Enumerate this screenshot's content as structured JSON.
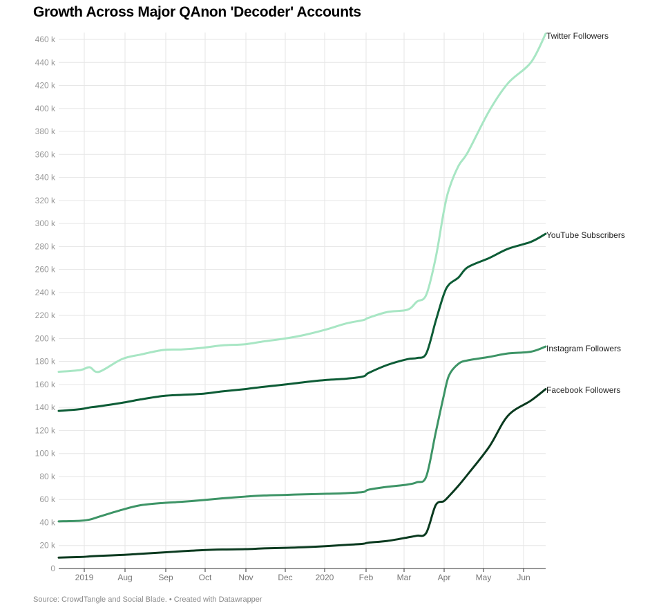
{
  "title": "Growth Across Major QAnon 'Decoder' Accounts",
  "footer": "Source: CrowdTangle and Social Blade. • Created with Datawrapper",
  "chart_data": {
    "type": "line",
    "title": "Growth Across Major QAnon 'Decoder' Accounts",
    "xlabel": "",
    "ylabel": "",
    "ylim": [
      0,
      460000
    ],
    "grid": true,
    "legend": "direct labels at line ends (right)",
    "x_ticks": [
      "2019",
      "Aug",
      "Sep",
      "Oct",
      "Nov",
      "Dec",
      "2020",
      "Feb",
      "Mar",
      "Apr",
      "May",
      "Jun"
    ],
    "y_ticks": [
      "0",
      "20 k",
      "40 k",
      "60 k",
      "80 k",
      "100 k",
      "120 k",
      "140 k",
      "160 k",
      "180 k",
      "200 k",
      "220 k",
      "240 k",
      "260 k",
      "280 k",
      "300 k",
      "320 k",
      "340 k",
      "360 k",
      "380 k",
      "400 k",
      "420 k",
      "440 k",
      "460 k"
    ],
    "x": [
      "2019-06-15",
      "2019-07-01",
      "2019-07-08",
      "2019-07-15",
      "2019-08-01",
      "2019-08-15",
      "2019-09-01",
      "2019-09-15",
      "2019-10-01",
      "2019-10-15",
      "2019-11-01",
      "2019-11-15",
      "2019-12-01",
      "2019-12-15",
      "2020-01-01",
      "2020-01-15",
      "2020-01-28",
      "2020-02-01",
      "2020-02-15",
      "2020-03-01",
      "2020-03-08",
      "2020-03-15",
      "2020-03-22",
      "2020-03-28",
      "2020-04-01",
      "2020-04-08",
      "2020-04-15",
      "2020-05-01",
      "2020-05-15",
      "2020-06-01",
      "2020-06-12"
    ],
    "series": [
      {
        "name": "Twitter Followers",
        "color": "#a8e6c4",
        "values": [
          171000,
          172500,
          175000,
          171000,
          182000,
          186000,
          190000,
          190500,
          192000,
          194000,
          195000,
          197500,
          200000,
          203000,
          208000,
          213000,
          216000,
          218000,
          223000,
          225000,
          232000,
          238000,
          270000,
          310000,
          330000,
          350000,
          362000,
          398000,
          422000,
          440000,
          465000
        ]
      },
      {
        "name": "YouTube Subscribers",
        "color": "#0d5c36",
        "values": [
          137000,
          138500,
          140000,
          141000,
          144000,
          147000,
          150000,
          151000,
          152000,
          154000,
          156000,
          158000,
          160000,
          162000,
          164000,
          165000,
          167000,
          170000,
          177000,
          182000,
          183000,
          187000,
          215000,
          238000,
          247000,
          253000,
          262000,
          270000,
          278000,
          284000,
          291000
        ]
      },
      {
        "name": "Instagram Followers",
        "color": "#3d9466",
        "values": [
          41000,
          41500,
          42500,
          45000,
          51000,
          55000,
          57000,
          58000,
          59500,
          61000,
          62500,
          63500,
          64000,
          64500,
          65000,
          65500,
          66500,
          68500,
          71000,
          73000,
          75000,
          80000,
          118000,
          150000,
          168000,
          178000,
          181000,
          184000,
          187000,
          188500,
          193000
        ]
      },
      {
        "name": "Facebook Followers",
        "color": "#0a3a1f",
        "values": [
          9500,
          10000,
          10500,
          11000,
          11800,
          12800,
          14000,
          15000,
          16000,
          16500,
          16800,
          17500,
          18000,
          18500,
          19500,
          20500,
          21500,
          22500,
          24000,
          27000,
          28500,
          31000,
          55000,
          58500,
          63000,
          72000,
          82000,
          106000,
          133000,
          146000,
          156000
        ]
      }
    ]
  }
}
